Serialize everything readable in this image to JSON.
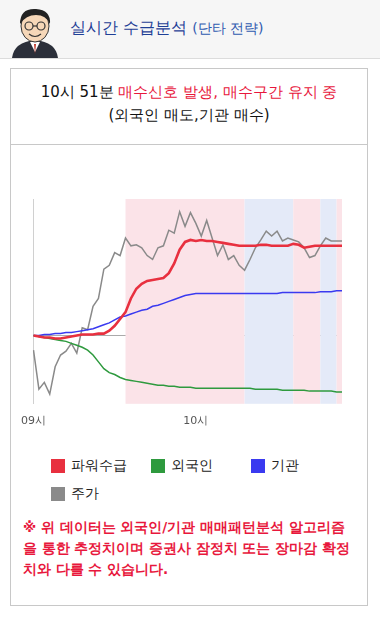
{
  "header": {
    "title": "실시간 수급분석",
    "subtitle": "(단타 전략)"
  },
  "signal": {
    "time": "10시 51분",
    "text": "매수신호 발생, 매수구간 유지 중",
    "detail": "(외국인 매도,기관 매수)"
  },
  "chart_data": {
    "type": "line",
    "categories": [
      "09시",
      null,
      null,
      null,
      null,
      null,
      null,
      null,
      null,
      null,
      null,
      null,
      null,
      null,
      null,
      null,
      null,
      null,
      null,
      null,
      null,
      null,
      null,
      null,
      null,
      null,
      null,
      null,
      null,
      null,
      "10시",
      null,
      null,
      null,
      null,
      null,
      null,
      null,
      null,
      null,
      null,
      null,
      null,
      null,
      null,
      null,
      null,
      null,
      null,
      null,
      null,
      null,
      null,
      null,
      null,
      null,
      null,
      null
    ],
    "series": [
      {
        "name": "파워수급",
        "color": "#e8303f",
        "values": [
          0,
          -1,
          -2,
          -2,
          -3,
          -3,
          -2,
          -1,
          0,
          1,
          1,
          1,
          2,
          2,
          5,
          10,
          17,
          24,
          38,
          48,
          53,
          56,
          57,
          58,
          59,
          64,
          74,
          88,
          96,
          98,
          97,
          98,
          97,
          97,
          96,
          95,
          94,
          93,
          92,
          92,
          92,
          92,
          93,
          93,
          92,
          92,
          92,
          92,
          94,
          93,
          90,
          91,
          92,
          92,
          92,
          92,
          92,
          92
        ]
      },
      {
        "name": "외국인",
        "color": "#2e9a3e",
        "values": [
          0,
          -1,
          -2,
          -3,
          -4,
          -5,
          -6,
          -8,
          -10,
          -12,
          -15,
          -20,
          -27,
          -34,
          -38,
          -40,
          -43,
          -45,
          -46,
          -47,
          -48,
          -49,
          -50,
          -51,
          -51,
          -52,
          -52,
          -53,
          -53,
          -53,
          -54,
          -54,
          -54,
          -54,
          -54,
          -54,
          -54,
          -54,
          -54,
          -54,
          -54,
          -55,
          -55,
          -55,
          -55,
          -55,
          -56,
          -56,
          -56,
          -56,
          -56,
          -57,
          -57,
          -57,
          -57,
          -57,
          -58,
          -58
        ]
      },
      {
        "name": "기관",
        "color": "#3a3af0",
        "values": [
          0,
          0,
          1,
          1,
          2,
          2,
          3,
          3,
          4,
          5,
          6,
          7,
          9,
          11,
          13,
          16,
          19,
          20,
          22,
          24,
          26,
          27,
          30,
          31,
          33,
          35,
          37,
          39,
          41,
          42,
          43,
          43,
          43,
          43,
          43,
          43,
          43,
          43,
          43,
          43,
          43,
          43,
          43,
          43,
          43,
          43,
          44,
          44,
          44,
          44,
          44,
          44,
          44,
          45,
          45,
          45,
          46,
          46
        ]
      },
      {
        "name": "주가",
        "color": "#8a8a8a",
        "values": [
          -15,
          -55,
          -48,
          -60,
          -32,
          -20,
          -16,
          -8,
          -18,
          8,
          6,
          30,
          38,
          68,
          72,
          85,
          82,
          100,
          92,
          93,
          90,
          82,
          78,
          90,
          92,
          108,
          105,
          127,
          112,
          126,
          115,
          102,
          118,
          100,
          82,
          93,
          78,
          82,
          72,
          67,
          78,
          90,
          98,
          107,
          102,
          107,
          97,
          100,
          98,
          96,
          90,
          80,
          82,
          92,
          100,
          97,
          97,
          97
        ]
      }
    ],
    "zones": [
      {
        "start": 17,
        "end": 39,
        "color": "#fbe3e8"
      },
      {
        "start": 39,
        "end": 48,
        "color": "#e4eaf8"
      },
      {
        "start": 48,
        "end": 53,
        "color": "#fbe3e8"
      },
      {
        "start": 53,
        "end": 56,
        "color": "#e4eaf8"
      },
      {
        "start": 56,
        "end": 57,
        "color": "#fbe3e8"
      }
    ],
    "ylim": [
      -70,
      140
    ],
    "yticks": [
      0
    ],
    "grid": true,
    "tick_labels": "x",
    "legend": "bottom"
  },
  "note": "※ 위 데이터는 외국인/기관 매매패턴분석 알고리즘을 통한 추정치이며 증권사 잠정치 또는 장마감 확정치와 다를 수 있습니다."
}
